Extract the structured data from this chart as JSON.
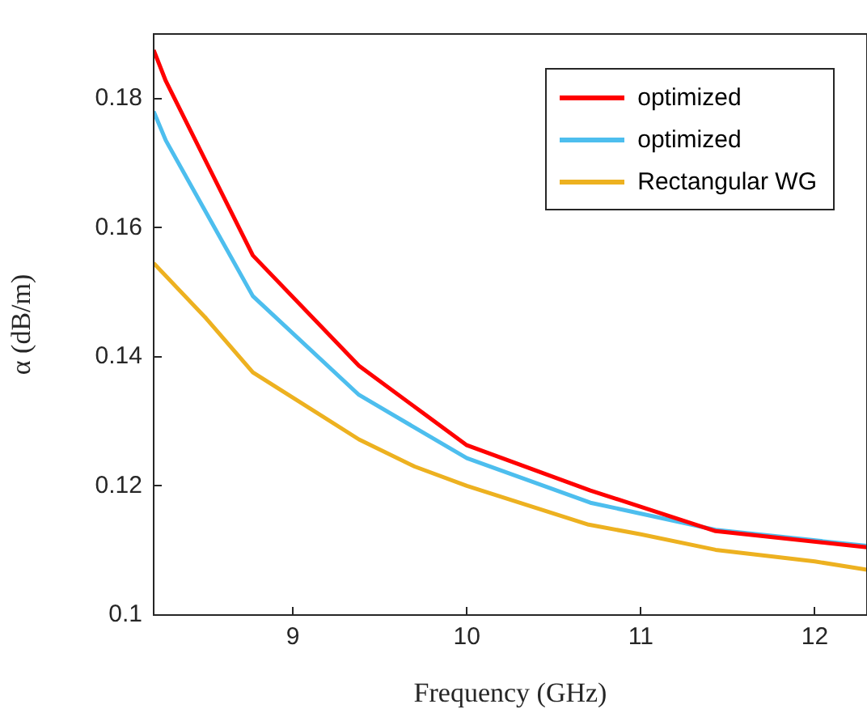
{
  "chart_data": {
    "type": "line",
    "xlabel": "Frequency (GHz)",
    "ylabel": "α (dB/m)",
    "xlim": [
      8.2,
      12.3
    ],
    "xticks": [
      9,
      10,
      11,
      12
    ],
    "ylim": [
      0.1,
      0.19
    ],
    "yticks": [
      0.1,
      0.12,
      0.14,
      0.16,
      0.18
    ],
    "grid": false,
    "legend": "top right",
    "marker": "none",
    "line_style": "solid",
    "series": [
      {
        "name": "optimized",
        "color": "#ff0000",
        "x": [
          8.2,
          8.27,
          8.77,
          9.38,
          10.0,
          10.71,
          11.43,
          12.3
        ],
        "values": [
          0.1875,
          0.1827,
          0.1557,
          0.1386,
          0.1263,
          0.1193,
          0.113,
          0.1105
        ]
      },
      {
        "name": "optimized",
        "color": "#4dbeee",
        "x": [
          8.2,
          8.27,
          8.77,
          9.38,
          10.0,
          10.71,
          11.43,
          12.3
        ],
        "values": [
          0.178,
          0.1735,
          0.1494,
          0.1341,
          0.1243,
          0.1174,
          0.1132,
          0.1107
        ]
      },
      {
        "name": "Rectangular WG",
        "color": "#edb120",
        "x": [
          8.2,
          8.5,
          8.77,
          9.38,
          9.7,
          10.0,
          10.7,
          11.0,
          11.43,
          12.0,
          12.3
        ],
        "values": [
          0.1545,
          0.146,
          0.1376,
          0.1272,
          0.123,
          0.12,
          0.114,
          0.1125,
          0.1101,
          0.1083,
          0.107
        ]
      }
    ]
  }
}
